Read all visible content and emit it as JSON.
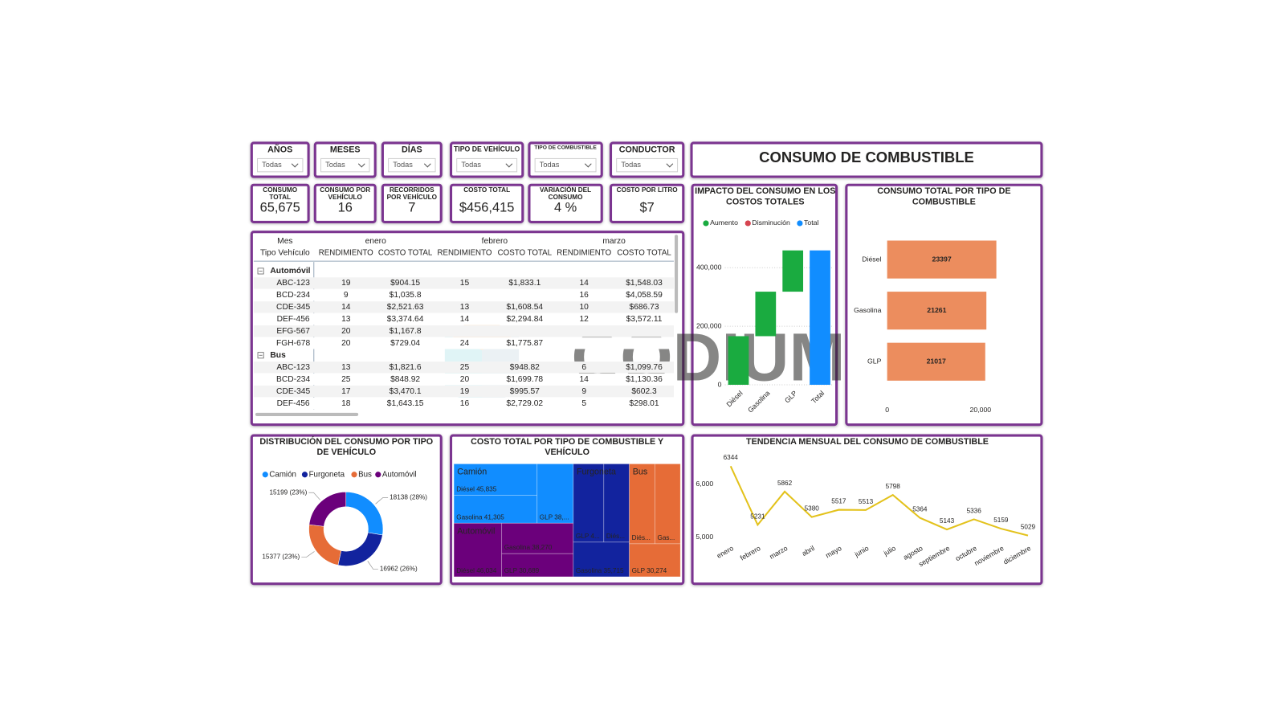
{
  "title": "CONSUMO DE COMBUSTIBLE",
  "watermark": "CODIUM",
  "slicers": [
    {
      "label": "AÑOS",
      "value": "Todas"
    },
    {
      "label": "MESES",
      "value": "Todas"
    },
    {
      "label": "DÍAS",
      "value": "Todas"
    },
    {
      "label": "TIPO DE VEHÍCULO",
      "value": "Todas"
    },
    {
      "label": "TIPO DE COMBUSTIBLE",
      "value": "Todas"
    },
    {
      "label": "CONDUCTOR",
      "value": "Todas"
    }
  ],
  "kpis": [
    {
      "label": "CONSUMO TOTAL",
      "value": "65,675"
    },
    {
      "label": "CONSUMO POR VEHÍCULO",
      "value": "16"
    },
    {
      "label": "RECORRIDOS POR VEHÍCULO",
      "value": "7"
    },
    {
      "label": "COSTO TOTAL",
      "value": "$456,415"
    },
    {
      "label": "VARIACIÓN DEL CONSUMO",
      "value": "4 %"
    },
    {
      "label": "COSTO POR LITRO",
      "value": "$7"
    }
  ],
  "matrix": {
    "column_header": "Mes",
    "row_header": "Tipo Vehículo",
    "months": [
      "enero",
      "febrero",
      "marzo"
    ],
    "measures": [
      "RENDIMIENTO",
      "COSTO TOTAL"
    ],
    "groups": [
      {
        "name": "Automóvil",
        "rows": [
          {
            "vehicle": "ABC-123",
            "cells": [
              19,
              "$904.15",
              15,
              "$1,833.1",
              14,
              "$1,548.03"
            ]
          },
          {
            "vehicle": "BCD-234",
            "cells": [
              9,
              "$1,035.8",
              null,
              null,
              16,
              "$4,058.59"
            ]
          },
          {
            "vehicle": "CDE-345",
            "cells": [
              14,
              "$2,521.63",
              13,
              "$1,608.54",
              10,
              "$686.73"
            ]
          },
          {
            "vehicle": "DEF-456",
            "cells": [
              13,
              "$3,374.64",
              14,
              "$2,294.84",
              12,
              "$3,572.11"
            ]
          },
          {
            "vehicle": "EFG-567",
            "cells": [
              20,
              "$1,167.8",
              null,
              null,
              null,
              null
            ]
          },
          {
            "vehicle": "FGH-678",
            "cells": [
              20,
              "$729.04",
              24,
              "$1,775.87",
              null,
              null
            ]
          }
        ]
      },
      {
        "name": "Bus",
        "rows": [
          {
            "vehicle": "ABC-123",
            "cells": [
              13,
              "$1,821.6",
              25,
              "$948.82",
              6,
              "$1,099.76"
            ]
          },
          {
            "vehicle": "BCD-234",
            "cells": [
              25,
              "$848.92",
              20,
              "$1,699.78",
              14,
              "$1,130.36"
            ]
          },
          {
            "vehicle": "CDE-345",
            "cells": [
              17,
              "$3,470.1",
              19,
              "$995.57",
              9,
              "$602.3"
            ]
          },
          {
            "vehicle": "DEF-456",
            "cells": [
              18,
              "$1,643.15",
              16,
              "$2,729.02",
              5,
              "$298.01"
            ]
          }
        ]
      }
    ]
  },
  "waterfall": {
    "type": "waterfall",
    "title": "IMPACTO DEL CONSUMO EN LOS COSTOS TOTALES",
    "legend": [
      {
        "name": "Aumento",
        "color": "#1aab40"
      },
      {
        "name": "Disminución",
        "color": "#d64550"
      },
      {
        "name": "Total",
        "color": "#118dff"
      }
    ],
    "categories": [
      "Diésel",
      "Gasolina",
      "GLP",
      "Total"
    ],
    "values": [
      166000,
      152000,
      141000,
      459000
    ],
    "ylim": [
      0,
      470000
    ],
    "yticks": [
      0,
      {
        "value": 200000,
        "label": "200,000"
      },
      {
        "value": 400000,
        "label": "400,000"
      }
    ],
    "grid": true
  },
  "fuel_bar": {
    "type": "bar",
    "title": "CONSUMO TOTAL POR TIPO DE COMBUSTIBLE",
    "categories": [
      "Diésel",
      "Gasolina",
      "GLP"
    ],
    "values": [
      23397,
      21261,
      21017
    ],
    "color": "#ec8d5e",
    "xlim": [
      0,
      30000
    ],
    "xticks": [
      0,
      {
        "value": 20000,
        "label": "20,000"
      }
    ]
  },
  "donut": {
    "type": "donut",
    "title": "DISTRIBUCIÓN DEL CONSUMO POR TIPO DE VEHÍCULO",
    "categories": [
      "Camión",
      "Furgoneta",
      "Bus",
      "Automóvil"
    ],
    "values": [
      18138,
      16962,
      15377,
      15199
    ],
    "value_labels": [
      "18138 (28%)",
      "16962 (26%)",
      "15377 (23%)",
      "15199 (23%)"
    ],
    "colors": [
      "#118dff",
      "#12239e",
      "#e66c37",
      "#6b007b"
    ]
  },
  "treemap": {
    "type": "treemap",
    "title": "COSTO TOTAL POR TIPO DE COMBUSTIBLE Y VEHÍCULO",
    "groups": [
      {
        "name": "Camión",
        "color": "#118dff",
        "children": [
          {
            "value": 45835,
            "label": "Diésel 45,835"
          },
          {
            "value": 41305,
            "label": "Gasolina 41,305"
          },
          {
            "value": 38500,
            "label": "GLP 38,..."
          }
        ]
      },
      {
        "name": "Automóvil",
        "color": "#6b007b",
        "children": [
          {
            "value": 38270,
            "label": "Gasolina 38,270"
          },
          {
            "value": 46034,
            "label": "Diésel 46,034"
          },
          {
            "value": 30689,
            "label": "GLP 30,689"
          }
        ]
      },
      {
        "name": "Furgoneta",
        "color": "#12239e",
        "children": [
          {
            "value": 40000,
            "label": "GLP 4..."
          },
          {
            "value": 37000,
            "label": "Diés..."
          },
          {
            "value": 35715,
            "label": "Gasolina 35,715"
          }
        ]
      },
      {
        "name": "Bus",
        "color": "#e66c37",
        "children": [
          {
            "value": 36500,
            "label": "Diés..."
          },
          {
            "value": 36293,
            "label": "Gas..."
          },
          {
            "value": 30274,
            "label": "GLP 30,274"
          }
        ]
      }
    ]
  },
  "trend": {
    "type": "line",
    "title": "TENDENCIA MENSUAL DEL CONSUMO DE COMBUSTIBLE",
    "categories": [
      "enero",
      "febrero",
      "marzo",
      "abril",
      "mayo",
      "junio",
      "julio",
      "agosto",
      "septiembre",
      "octubre",
      "noviembre",
      "diciembre"
    ],
    "values": [
      6344,
      5231,
      5862,
      5380,
      5517,
      5513,
      5798,
      5364,
      5143,
      5336,
      5159,
      5029
    ],
    "color": "#e3c21c",
    "ylim": [
      4950,
      6450
    ],
    "yticks": [
      {
        "value": 5000,
        "label": "5,000"
      },
      {
        "value": 6000,
        "label": "6,000"
      }
    ]
  }
}
